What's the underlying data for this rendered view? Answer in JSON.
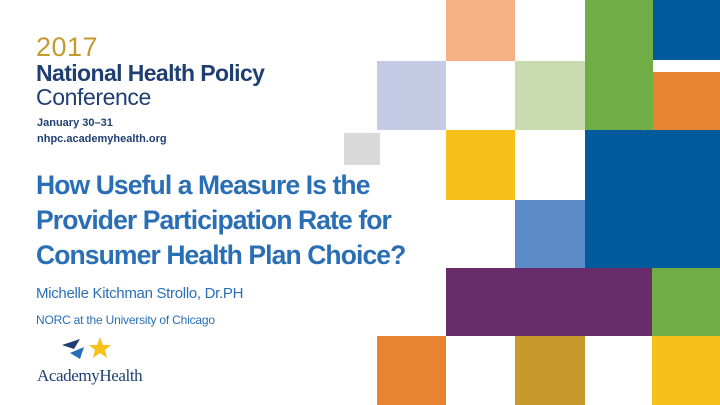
{
  "conference": {
    "year": "2017",
    "name": "National Health Policy",
    "name_line2": "Conference",
    "dates": "January 30–31",
    "url": "nhpc.academyhealth.org"
  },
  "title_lines": [
    "How Useful a Measure Is the",
    "Provider Participation Rate for",
    "Consumer Health Plan Choice?"
  ],
  "author": "Michelle Kitchman Strollo, Dr.PH",
  "organization": "NORC at the University of Chicago",
  "logo": {
    "text": "AcademyHealth",
    "icon": "academyhealth-logo-icon"
  },
  "colors": {
    "title": "#2a6fb5",
    "navy": "#1f3f73",
    "gold": "#c59a2e",
    "tile_peach": "#f5b183",
    "tile_green": "#70ad47",
    "tile_blue": "#005a9c",
    "tile_lavender": "#c5cbe5",
    "tile_sage": "#c9dcb1",
    "tile_orange": "#e8832f",
    "tile_gray": "#d9d9d9",
    "tile_yellow": "#f7c01a",
    "tile_mid_blue": "#5b8cc8",
    "tile_purple": "#682c6a",
    "tile_mustard": "#c89a2e"
  }
}
